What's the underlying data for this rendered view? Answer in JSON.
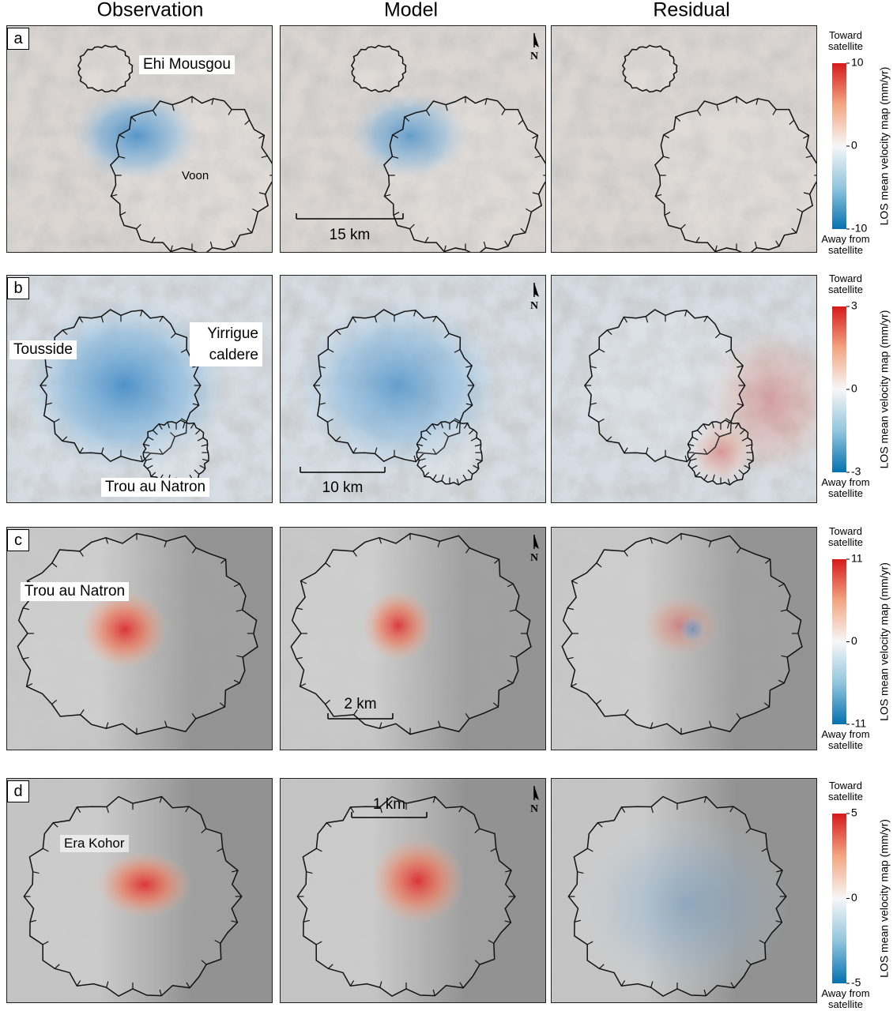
{
  "column_titles": [
    "Observation",
    "Model",
    "Residual"
  ],
  "north": "N",
  "colorbar": {
    "top_label": "Toward satellite",
    "bottom_label": "Away from satellite",
    "title": "LOS mean velocity map (mm/yr)"
  },
  "rows": [
    {
      "panel": "a",
      "places": [
        "Ehi Mousgou",
        "Voon"
      ],
      "scale_bar": "15 km",
      "colorbar_ticks": [
        10,
        0,
        -10
      ]
    },
    {
      "panel": "b",
      "places": [
        "Tousside",
        "Yirrigue caldere",
        "Trou au Natron"
      ],
      "scale_bar": "10 km",
      "colorbar_ticks": [
        3,
        0,
        -3
      ]
    },
    {
      "panel": "c",
      "places": [
        "Trou au Natron"
      ],
      "scale_bar": "2 km",
      "colorbar_ticks": [
        11,
        0,
        -11
      ]
    },
    {
      "panel": "d",
      "places": [
        "Era Kohor"
      ],
      "scale_bar": "1 km",
      "colorbar_ticks": [
        5,
        0,
        -5
      ]
    }
  ]
}
